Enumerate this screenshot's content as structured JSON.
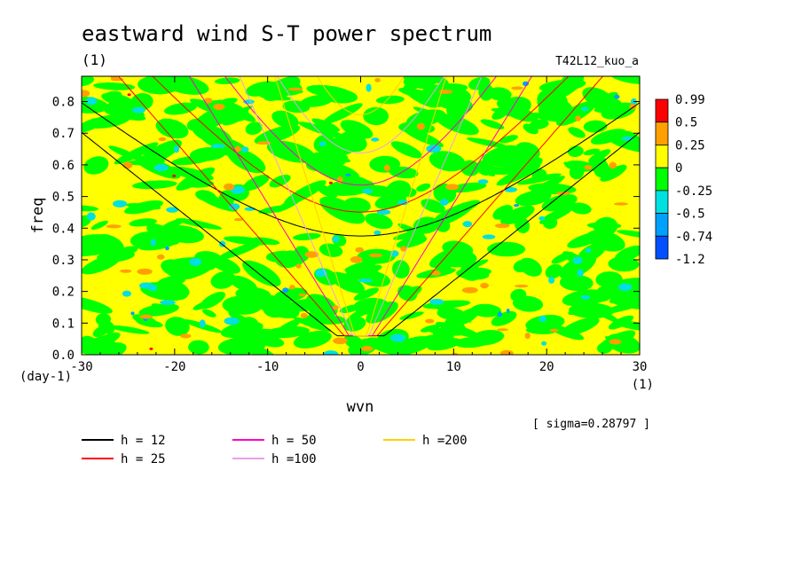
{
  "chart_data": {
    "type": "heatmap",
    "title": "eastward wind S-T power spectrum",
    "units": "(1)",
    "run_label": "T42L12_kuo_a",
    "xlabel": "wvn",
    "xunits": "(1)",
    "ylabel": "freq",
    "yunits": "(day-1)",
    "xlim": [
      -30,
      30
    ],
    "ylim": [
      0,
      0.88
    ],
    "x_ticks": [
      -30,
      -20,
      -10,
      0,
      10,
      20,
      30
    ],
    "x_tick_labels": [
      "-30",
      "-20",
      "-10",
      "0",
      "10",
      "20",
      "30"
    ],
    "y_ticks": [
      0,
      0.1,
      0.2,
      0.3,
      0.4,
      0.5,
      0.6,
      0.7,
      0.8
    ],
    "y_tick_labels": [
      "0.0",
      "0.1",
      "0.2",
      "0.3",
      "0.4",
      "0.5",
      "0.6",
      "0.7",
      "0.8"
    ],
    "sigma_label": "[ sigma=0.28797 ]",
    "colorbar": {
      "levels": [
        "0.99",
        "0.5",
        "0.25",
        "0",
        "-0.25",
        "-0.5",
        "-0.74",
        "-1.2"
      ],
      "colors": [
        "#ff0000",
        "#ffa000",
        "#ffff00",
        "#00ff00",
        "#00e0e0",
        "#00a0ff",
        "#0050ff"
      ]
    },
    "field_mix": {
      "yellow_fraction": 0.5,
      "green_fraction": 0.42,
      "cyan_fraction": 0.04,
      "orange_fraction": 0.04
    },
    "dispersion_curves": [
      {
        "name": "h = 12",
        "color": "#000000",
        "equivalent_depth_m": 12
      },
      {
        "name": "h = 25",
        "color": "#ff0000",
        "equivalent_depth_m": 25
      },
      {
        "name": "h = 50",
        "color": "#ff00c8",
        "equivalent_depth_m": 50
      },
      {
        "name": "h =100",
        "color": "#e8a0e8",
        "equivalent_depth_m": 100
      },
      {
        "name": "h =200",
        "color": "#ffd000",
        "equivalent_depth_m": 200
      }
    ]
  }
}
